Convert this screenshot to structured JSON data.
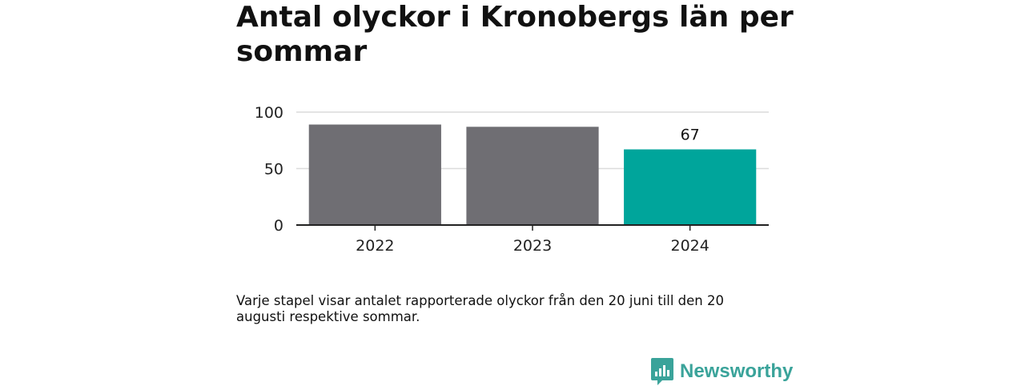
{
  "title": "Antal olyckor i Kronobergs län per sommar",
  "caption": "Varje stapel visar antalet rapporterade olyckor från den 20 juni till den 20 augusti respektive sommar.",
  "brand": {
    "name": "Newsworthy",
    "icon": "newsworthy-logo-icon",
    "color": "#3aa39a"
  },
  "chart_data": {
    "type": "bar",
    "title": "Antal olyckor i Kronobergs län per sommar",
    "xlabel": "",
    "ylabel": "",
    "categories": [
      "2022",
      "2023",
      "2024"
    ],
    "values": [
      89,
      87,
      67
    ],
    "data_labels": {
      "2024": "67"
    },
    "ylim": [
      0,
      100
    ],
    "yticks": [
      0,
      50,
      100
    ],
    "grid": true,
    "legend": "none",
    "colors": {
      "default": "#6f6e73",
      "highlight": "#00a59b"
    },
    "highlight_index": 2
  }
}
